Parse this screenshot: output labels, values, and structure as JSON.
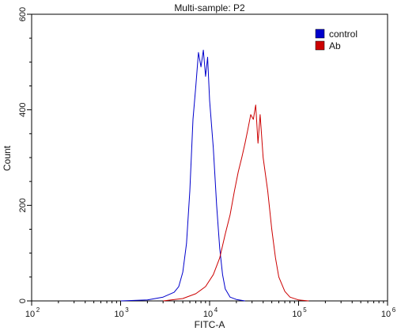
{
  "chart_data": {
    "type": "line",
    "title": "Multi-sample: P2",
    "xlabel": "FITC-A",
    "ylabel": "Count",
    "x_scale": "log",
    "xlim": [
      100,
      1000000
    ],
    "ylim": [
      0,
      600
    ],
    "x_ticks": [
      {
        "value": 100,
        "base": "10",
        "exp": "2"
      },
      {
        "value": 1000,
        "base": "10",
        "exp": "3"
      },
      {
        "value": 10000,
        "base": "10",
        "exp": "4"
      },
      {
        "value": 100000,
        "base": "10",
        "exp": "5"
      },
      {
        "value": 1000000,
        "base": "10",
        "exp": "6"
      }
    ],
    "y_ticks": [
      "0",
      "200",
      "400",
      "600"
    ],
    "legend": {
      "placement": "top-right"
    },
    "series": [
      {
        "name": "control",
        "color": "#0000cc",
        "x": [
          1000,
          2000,
          3000,
          4000,
          4500,
          5000,
          5500,
          6000,
          6500,
          7000,
          7500,
          8000,
          8500,
          9000,
          9500,
          10000,
          11000,
          12000,
          13000,
          14000,
          15000,
          17000,
          20000,
          25000
        ],
        "y": [
          0,
          2,
          8,
          18,
          30,
          60,
          120,
          230,
          380,
          450,
          520,
          490,
          525,
          470,
          510,
          420,
          320,
          200,
          110,
          55,
          25,
          8,
          3,
          0
        ]
      },
      {
        "name": "Ab",
        "color": "#cc0000",
        "x": [
          3000,
          5000,
          7000,
          9000,
          11000,
          13000,
          15000,
          17000,
          19000,
          21000,
          23000,
          25000,
          27000,
          29000,
          31000,
          33000,
          35000,
          37000,
          40000,
          45000,
          50000,
          55000,
          60000,
          70000,
          80000,
          100000,
          130000
        ],
        "y": [
          0,
          5,
          15,
          30,
          55,
          90,
          140,
          180,
          230,
          270,
          300,
          330,
          360,
          390,
          380,
          410,
          330,
          390,
          300,
          230,
          150,
          90,
          50,
          20,
          8,
          2,
          0
        ]
      }
    ]
  }
}
